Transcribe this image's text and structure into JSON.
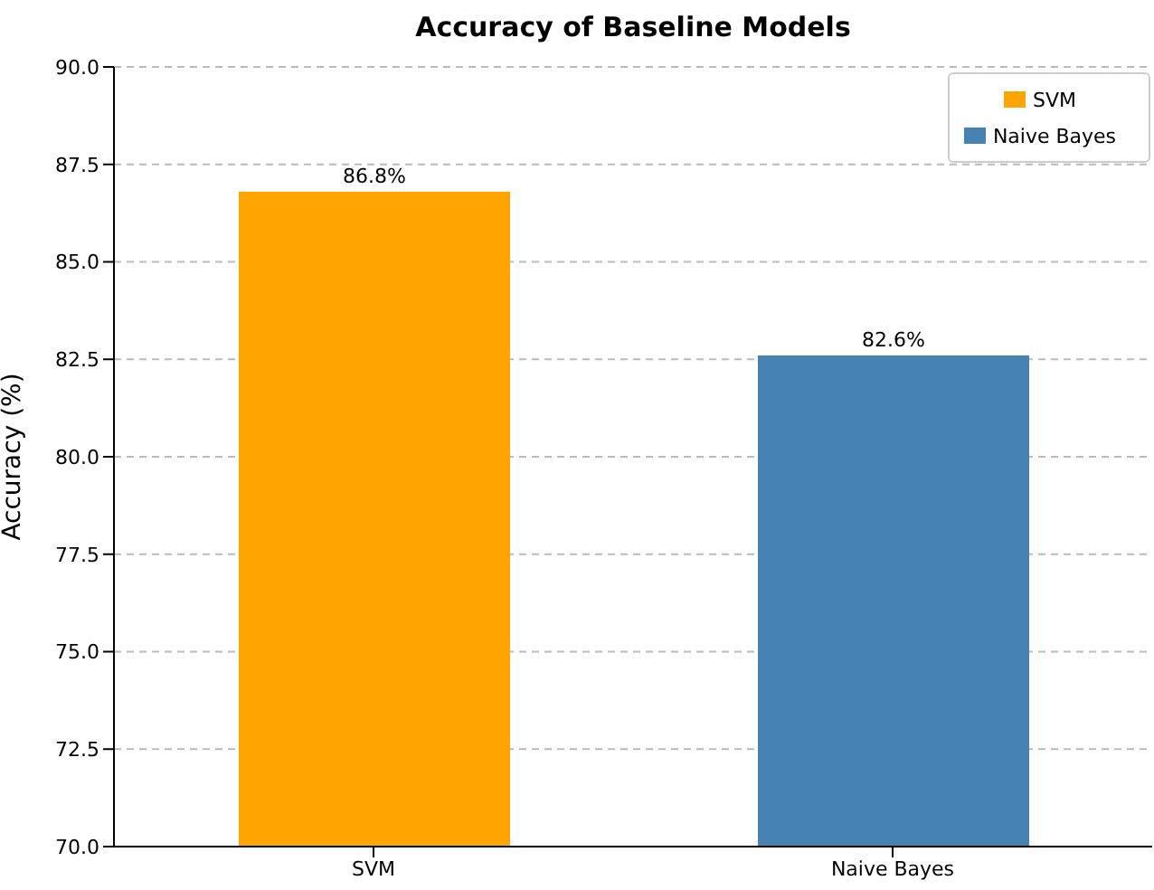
{
  "chart_data": {
    "type": "bar",
    "title": "Accuracy of Baseline Models",
    "ylabel": "Accuracy (%)",
    "categories": [
      "SVM",
      "Naive Bayes"
    ],
    "series": [
      {
        "name": "SVM",
        "color": "#ffa500",
        "values": [
          86.8,
          null
        ],
        "value_labels": [
          "86.8%",
          null
        ]
      },
      {
        "name": "Naive Bayes",
        "color": "#4682b4",
        "values": [
          null,
          82.6
        ],
        "value_labels": [
          null,
          "82.6%"
        ]
      }
    ],
    "stacked": true,
    "ylim": [
      70,
      90
    ],
    "yticks": [
      {
        "value": 70,
        "label": "70.0"
      },
      {
        "value": 72.5,
        "label": "72.5"
      },
      {
        "value": 75,
        "label": "75.0"
      },
      {
        "value": 77.5,
        "label": "77.5"
      },
      {
        "value": 80,
        "label": "80.0"
      },
      {
        "value": 82.5,
        "label": "82.5"
      },
      {
        "value": 85,
        "label": "85.0"
      },
      {
        "value": 87.5,
        "label": "87.5"
      },
      {
        "value": 90,
        "label": "90.0"
      }
    ],
    "grid": "y",
    "legend": "top right"
  }
}
